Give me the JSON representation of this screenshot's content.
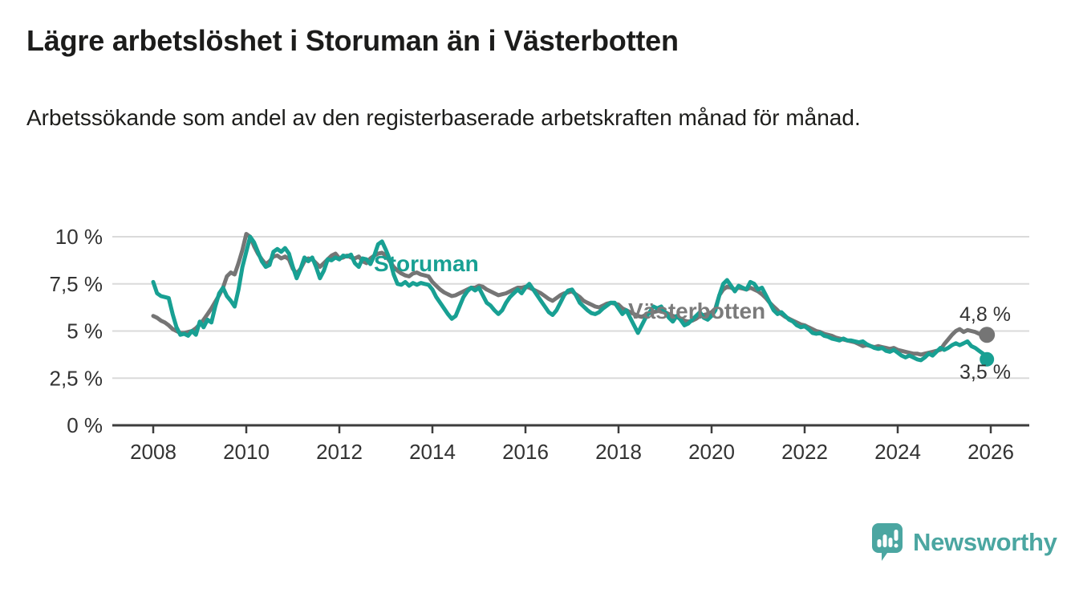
{
  "header": {
    "title": "Lägre arbetslöshet i Storuman än i Västerbotten",
    "subtitle": "Arbetssökande som andel av den registerbaserade arbetskraften månad för månad."
  },
  "footer": {
    "brand": "Newsworthy",
    "logo_icon": "newsworthy-speech-bubble-bar-chart-icon"
  },
  "colors": {
    "storuman": "#18a093",
    "vasterbotten": "#757575",
    "vasterbotten_label": "#7b7b7b",
    "brand_teal": "#4ba6a1",
    "grid": "#dadada",
    "axis": "#3d3d3d",
    "tick_text": "#333333",
    "value_text": "#333333",
    "title_text": "#1c1c1b"
  },
  "chart_data": {
    "type": "line",
    "title": "Lägre arbetslöshet i Storuman än i Västerbotten",
    "subtitle": "Arbetssökande som andel av den registerbaserade arbetskraften månad för månad.",
    "x_unit": "year",
    "time_resolution": "monthly",
    "xlim": [
      2008,
      2026.6
    ],
    "ylim": [
      0,
      10.6
    ],
    "grid": "horizontal-only",
    "legend_position": "inline-labels-on-lines",
    "x_ticks": [
      {
        "value": 2008,
        "label": "2008"
      },
      {
        "value": 2010,
        "label": "2010"
      },
      {
        "value": 2012,
        "label": "2012"
      },
      {
        "value": 2014,
        "label": "2014"
      },
      {
        "value": 2016,
        "label": "2016"
      },
      {
        "value": 2018,
        "label": "2018"
      },
      {
        "value": 2020,
        "label": "2020"
      },
      {
        "value": 2022,
        "label": "2022"
      },
      {
        "value": 2024,
        "label": "2024"
      },
      {
        "value": 2026,
        "label": "2026"
      }
    ],
    "y_ticks": [
      {
        "value": 0,
        "label": "0 %"
      },
      {
        "value": 2.5,
        "label": "2,5 %"
      },
      {
        "value": 5,
        "label": "5 %"
      },
      {
        "value": 7.5,
        "label": "7,5 %"
      },
      {
        "value": 10,
        "label": "10 %"
      }
    ],
    "series": [
      {
        "name": "Västerbotten",
        "color": "#757575",
        "start_year": 2008,
        "points_per_year": 12,
        "end_value": 4.8,
        "end_label": "4,8 %",
        "end_dot_radius": 10,
        "values": [
          5.8,
          5.7,
          5.55,
          5.45,
          5.3,
          5.1,
          5.0,
          4.9,
          4.9,
          4.95,
          5.0,
          5.15,
          5.35,
          5.6,
          5.9,
          6.2,
          6.55,
          6.9,
          7.3,
          7.9,
          8.1,
          8.0,
          8.6,
          9.3,
          10.15,
          10.0,
          9.5,
          9.1,
          8.8,
          8.55,
          8.7,
          8.95,
          9.0,
          8.85,
          8.95,
          8.8,
          8.3,
          8.05,
          8.3,
          8.7,
          8.85,
          8.8,
          8.6,
          8.4,
          8.6,
          8.8,
          9.0,
          9.1,
          8.85,
          8.9,
          9.0,
          8.9,
          8.85,
          8.95,
          8.7,
          8.6,
          8.85,
          9.0,
          9.1,
          9.15,
          9.0,
          8.7,
          8.4,
          8.2,
          8.05,
          7.95,
          7.9,
          8.05,
          8.1,
          8.0,
          7.95,
          7.9,
          7.6,
          7.4,
          7.2,
          7.05,
          6.95,
          6.85,
          6.9,
          7.0,
          7.1,
          7.2,
          7.3,
          7.3,
          7.4,
          7.35,
          7.2,
          7.1,
          7.0,
          6.9,
          6.95,
          7.0,
          7.1,
          7.2,
          7.3,
          7.3,
          7.35,
          7.3,
          7.2,
          7.1,
          7.0,
          6.85,
          6.7,
          6.6,
          6.75,
          6.9,
          7.0,
          7.05,
          7.1,
          6.95,
          6.8,
          6.6,
          6.5,
          6.4,
          6.3,
          6.25,
          6.35,
          6.45,
          6.5,
          6.45,
          6.4,
          6.2,
          6.1,
          6.0,
          5.9,
          5.8,
          5.75,
          5.85,
          5.95,
          6.0,
          6.05,
          6.1,
          6.0,
          5.9,
          5.8,
          5.75,
          5.65,
          5.55,
          5.5,
          5.55,
          5.65,
          5.8,
          5.85,
          5.9,
          6.0,
          6.2,
          6.9,
          7.2,
          7.35,
          7.3,
          7.2,
          7.3,
          7.25,
          7.2,
          7.3,
          7.2,
          7.1,
          6.95,
          6.75,
          6.5,
          6.3,
          6.1,
          5.9,
          5.75,
          5.65,
          5.55,
          5.45,
          5.35,
          5.3,
          5.2,
          5.1,
          5.0,
          4.95,
          4.85,
          4.8,
          4.75,
          4.65,
          4.6,
          4.55,
          4.5,
          4.45,
          4.4,
          4.3,
          4.2,
          4.25,
          4.2,
          4.15,
          4.2,
          4.15,
          4.1,
          4.05,
          4.1,
          4.0,
          3.95,
          3.9,
          3.85,
          3.8,
          3.8,
          3.75,
          3.8,
          3.85,
          3.9,
          3.95,
          4.0,
          4.3,
          4.55,
          4.8,
          5.0,
          5.1,
          4.95,
          5.05,
          5.0,
          4.95,
          4.85,
          4.8,
          4.8
        ]
      },
      {
        "name": "Storuman",
        "color": "#18a093",
        "start_year": 2008,
        "points_per_year": 12,
        "end_value": 3.5,
        "end_label": "3,5 %",
        "end_dot_radius": 9,
        "values": [
          7.6,
          7.0,
          6.85,
          6.8,
          6.75,
          5.9,
          5.2,
          4.8,
          4.85,
          4.75,
          5.0,
          4.8,
          5.5,
          5.2,
          5.6,
          5.45,
          6.3,
          7.0,
          7.3,
          6.85,
          6.6,
          6.3,
          7.2,
          8.4,
          9.2,
          10.0,
          9.7,
          9.2,
          8.7,
          8.4,
          8.5,
          9.2,
          9.35,
          9.2,
          9.4,
          9.1,
          8.4,
          7.8,
          8.3,
          8.9,
          8.7,
          8.9,
          8.4,
          7.8,
          8.2,
          8.8,
          8.75,
          8.9,
          8.8,
          9.0,
          8.95,
          9.05,
          8.6,
          8.4,
          8.85,
          8.8,
          8.55,
          9.0,
          9.6,
          9.75,
          9.3,
          8.8,
          8.0,
          7.5,
          7.45,
          7.6,
          7.4,
          7.55,
          7.45,
          7.55,
          7.5,
          7.45,
          7.2,
          6.8,
          6.5,
          6.2,
          5.9,
          5.65,
          5.8,
          6.3,
          6.8,
          7.1,
          7.3,
          7.15,
          7.3,
          6.9,
          6.5,
          6.35,
          6.1,
          5.9,
          6.1,
          6.5,
          6.8,
          7.0,
          7.2,
          7.0,
          7.3,
          7.5,
          7.2,
          6.9,
          6.6,
          6.3,
          6.0,
          5.85,
          6.1,
          6.5,
          6.9,
          7.15,
          7.2,
          6.9,
          6.5,
          6.3,
          6.1,
          5.95,
          5.9,
          6.0,
          6.2,
          6.35,
          6.5,
          6.5,
          6.2,
          5.9,
          6.1,
          5.7,
          5.3,
          4.9,
          5.3,
          5.7,
          6.0,
          6.3,
          6.2,
          6.3,
          6.0,
          5.7,
          5.5,
          5.8,
          5.6,
          5.3,
          5.4,
          5.6,
          5.8,
          6.0,
          5.7,
          5.6,
          5.8,
          6.1,
          6.9,
          7.5,
          7.7,
          7.4,
          7.1,
          7.4,
          7.3,
          7.2,
          7.6,
          7.5,
          7.2,
          7.3,
          6.9,
          6.5,
          6.1,
          5.9,
          6.0,
          5.8,
          5.6,
          5.5,
          5.3,
          5.2,
          5.25,
          5.1,
          4.9,
          4.85,
          4.9,
          4.75,
          4.7,
          4.6,
          4.55,
          4.5,
          4.6,
          4.5,
          4.5,
          4.45,
          4.4,
          4.45,
          4.3,
          4.2,
          4.1,
          4.05,
          4.1,
          3.95,
          3.9,
          4.0,
          3.85,
          3.7,
          3.6,
          3.7,
          3.6,
          3.5,
          3.45,
          3.6,
          3.8,
          3.7,
          3.9,
          4.1,
          4.0,
          4.1,
          4.25,
          4.35,
          4.25,
          4.35,
          4.45,
          4.2,
          4.1,
          3.95,
          3.8,
          3.5
        ]
      }
    ]
  }
}
